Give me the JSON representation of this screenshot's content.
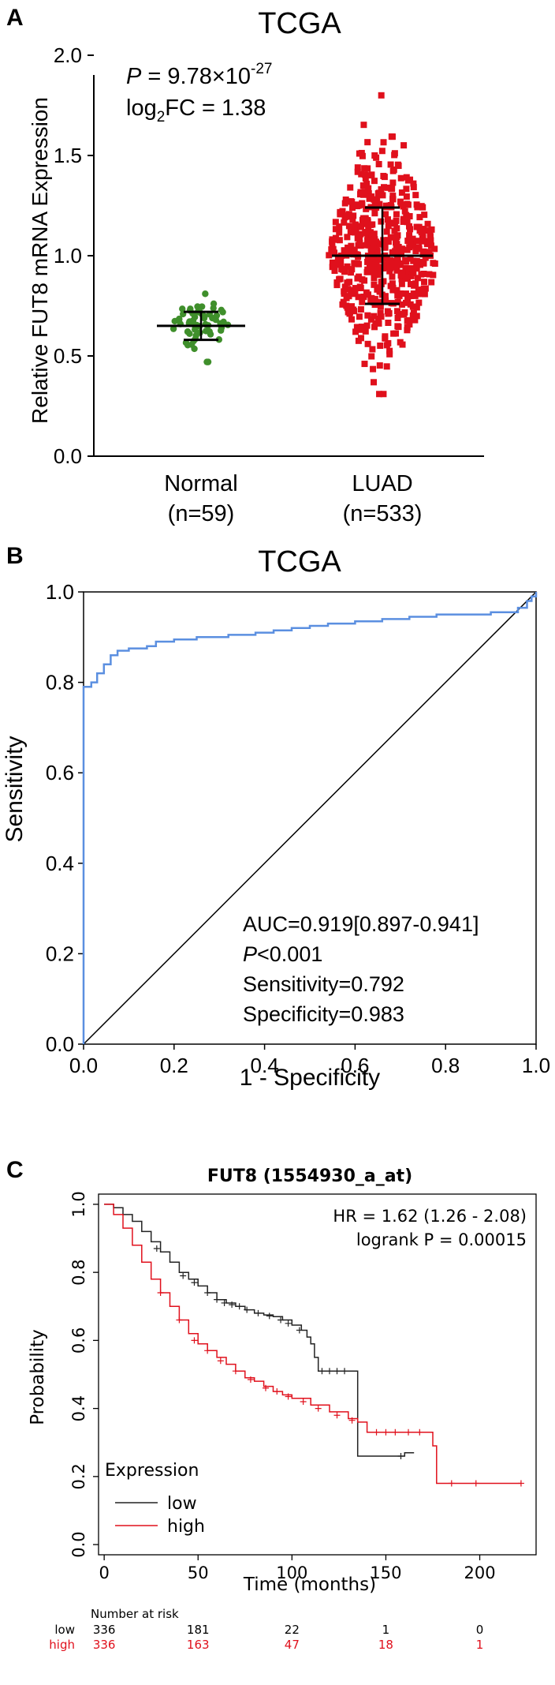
{
  "chart_data": [
    {
      "type": "scatter",
      "panel_label": "A",
      "title": "TCGA",
      "ylabel": "Relative FUT8 mRNA Expression",
      "ylim": [
        0,
        2.0
      ],
      "y_ticks": [
        "0.0",
        "0.5",
        "1.0",
        "1.5",
        "2.0"
      ],
      "categories": [
        "Normal",
        "LUAD"
      ],
      "category_n": [
        "(n=59)",
        "(n=533)"
      ],
      "annotation": {
        "p_label": "P",
        "p_value": " = 9.78×10",
        "p_exp": "-27",
        "fc_label": "log",
        "fc_sub": "2",
        "fc_value": "FC = 1.38"
      },
      "series": [
        {
          "category": "Normal",
          "color": "#3f8f2b",
          "n": 59,
          "mean": 0.65,
          "sd_low": 0.58,
          "sd_high": 0.72,
          "min": 0.47,
          "max": 0.81
        },
        {
          "category": "LUAD",
          "color": "#e0101c",
          "n": 533,
          "mean": 1.0,
          "sd_low": 0.76,
          "sd_high": 1.24,
          "min": 0.31,
          "max": 1.8
        }
      ]
    },
    {
      "type": "line",
      "panel_label": "B",
      "title": "TCGA",
      "xlabel": "1 - Specificity",
      "ylabel": "Sensitivity",
      "xlim": [
        0,
        1
      ],
      "ylim": [
        0,
        1
      ],
      "x_ticks": [
        "0.0",
        "0.2",
        "0.4",
        "0.6",
        "0.8",
        "1.0"
      ],
      "y_ticks": [
        "0.0",
        "0.2",
        "0.4",
        "0.6",
        "0.8",
        "1.0"
      ],
      "roc_color": "#5b8fe0",
      "roc_points": [
        [
          0,
          0
        ],
        [
          0,
          0.79
        ],
        [
          0.017,
          0.79
        ],
        [
          0.017,
          0.8
        ],
        [
          0.03,
          0.8
        ],
        [
          0.03,
          0.82
        ],
        [
          0.045,
          0.82
        ],
        [
          0.045,
          0.84
        ],
        [
          0.06,
          0.84
        ],
        [
          0.06,
          0.86
        ],
        [
          0.075,
          0.86
        ],
        [
          0.075,
          0.87
        ],
        [
          0.1,
          0.87
        ],
        [
          0.1,
          0.875
        ],
        [
          0.14,
          0.875
        ],
        [
          0.14,
          0.88
        ],
        [
          0.16,
          0.88
        ],
        [
          0.16,
          0.89
        ],
        [
          0.2,
          0.89
        ],
        [
          0.2,
          0.895
        ],
        [
          0.25,
          0.895
        ],
        [
          0.25,
          0.9
        ],
        [
          0.32,
          0.9
        ],
        [
          0.32,
          0.905
        ],
        [
          0.38,
          0.905
        ],
        [
          0.38,
          0.91
        ],
        [
          0.42,
          0.91
        ],
        [
          0.42,
          0.915
        ],
        [
          0.46,
          0.915
        ],
        [
          0.46,
          0.92
        ],
        [
          0.5,
          0.92
        ],
        [
          0.5,
          0.925
        ],
        [
          0.54,
          0.925
        ],
        [
          0.54,
          0.93
        ],
        [
          0.6,
          0.93
        ],
        [
          0.6,
          0.935
        ],
        [
          0.66,
          0.935
        ],
        [
          0.66,
          0.94
        ],
        [
          0.72,
          0.94
        ],
        [
          0.72,
          0.945
        ],
        [
          0.78,
          0.945
        ],
        [
          0.78,
          0.95
        ],
        [
          0.9,
          0.95
        ],
        [
          0.9,
          0.955
        ],
        [
          0.96,
          0.955
        ],
        [
          0.96,
          0.965
        ],
        [
          0.98,
          0.965
        ],
        [
          0.98,
          0.98
        ],
        [
          0.99,
          0.98
        ],
        [
          0.99,
          0.99
        ],
        [
          1,
          0.99
        ],
        [
          1,
          1
        ]
      ],
      "stats": [
        "AUC=0.919[0.897-0.941]",
        "<0.001",
        "Sensitivity=0.792",
        "Specificity=0.983"
      ],
      "stats_p_label": "P"
    },
    {
      "type": "line",
      "panel_label": "C",
      "title": "FUT8 (1554930_a_at)",
      "xlabel": "Time (months)",
      "ylabel": "Probability",
      "xlim": [
        0,
        230
      ],
      "ylim": [
        0,
        1.02
      ],
      "x_ticks": [
        0,
        50,
        100,
        150,
        200
      ],
      "y_ticks": [
        "0.0",
        "0.2",
        "0.4",
        "0.6",
        "0.8",
        "1.0"
      ],
      "stats": [
        "HR = 1.62 (1.26 - 2.08)",
        "logrank P = 0.00015"
      ],
      "legend_title": "Expression",
      "series": [
        {
          "name": "low",
          "color": "#222222",
          "points": [
            [
              0,
              1
            ],
            [
              5,
              0.99
            ],
            [
              10,
              0.97
            ],
            [
              15,
              0.95
            ],
            [
              20,
              0.92
            ],
            [
              25,
              0.89
            ],
            [
              30,
              0.86
            ],
            [
              35,
              0.83
            ],
            [
              40,
              0.8
            ],
            [
              45,
              0.78
            ],
            [
              50,
              0.76
            ],
            [
              55,
              0.74
            ],
            [
              60,
              0.72
            ],
            [
              65,
              0.71
            ],
            [
              70,
              0.7
            ],
            [
              75,
              0.69
            ],
            [
              80,
              0.68
            ],
            [
              85,
              0.675
            ],
            [
              90,
              0.67
            ],
            [
              95,
              0.66
            ],
            [
              100,
              0.645
            ],
            [
              105,
              0.63
            ],
            [
              108,
              0.61
            ],
            [
              110,
              0.59
            ],
            [
              112,
              0.55
            ],
            [
              114,
              0.51
            ],
            [
              135,
              0.51
            ],
            [
              135,
              0.26
            ],
            [
              160,
              0.26
            ],
            [
              160,
              0.27
            ],
            [
              165,
              0.27
            ]
          ],
          "censor": [
            [
              28,
              0.87
            ],
            [
              42,
              0.79
            ],
            [
              48,
              0.77
            ],
            [
              55,
              0.74
            ],
            [
              60,
              0.72
            ],
            [
              64,
              0.71
            ],
            [
              68,
              0.705
            ],
            [
              72,
              0.7
            ],
            [
              76,
              0.69
            ],
            [
              82,
              0.68
            ],
            [
              88,
              0.672
            ],
            [
              94,
              0.66
            ],
            [
              98,
              0.65
            ],
            [
              104,
              0.63
            ],
            [
              116,
              0.51
            ],
            [
              120,
              0.51
            ],
            [
              124,
              0.51
            ],
            [
              128,
              0.51
            ],
            [
              158,
              0.26
            ]
          ]
        },
        {
          "name": "high",
          "color": "#e0101c",
          "points": [
            [
              0,
              1
            ],
            [
              5,
              0.97
            ],
            [
              10,
              0.93
            ],
            [
              15,
              0.88
            ],
            [
              20,
              0.83
            ],
            [
              25,
              0.78
            ],
            [
              30,
              0.74
            ],
            [
              35,
              0.7
            ],
            [
              40,
              0.66
            ],
            [
              45,
              0.62
            ],
            [
              50,
              0.59
            ],
            [
              55,
              0.57
            ],
            [
              60,
              0.55
            ],
            [
              65,
              0.53
            ],
            [
              70,
              0.51
            ],
            [
              75,
              0.49
            ],
            [
              80,
              0.48
            ],
            [
              85,
              0.465
            ],
            [
              90,
              0.45
            ],
            [
              95,
              0.44
            ],
            [
              100,
              0.43
            ],
            [
              110,
              0.41
            ],
            [
              120,
              0.39
            ],
            [
              130,
              0.37
            ],
            [
              135,
              0.36
            ],
            [
              140,
              0.33
            ],
            [
              170,
              0.33
            ],
            [
              175,
              0.29
            ],
            [
              177,
              0.18
            ],
            [
              222,
              0.18
            ]
          ],
          "censor": [
            [
              30,
              0.74
            ],
            [
              40,
              0.66
            ],
            [
              48,
              0.6
            ],
            [
              55,
              0.57
            ],
            [
              62,
              0.54
            ],
            [
              70,
              0.51
            ],
            [
              78,
              0.485
            ],
            [
              86,
              0.46
            ],
            [
              92,
              0.45
            ],
            [
              98,
              0.435
            ],
            [
              106,
              0.42
            ],
            [
              114,
              0.4
            ],
            [
              124,
              0.38
            ],
            [
              132,
              0.365
            ],
            [
              145,
              0.33
            ],
            [
              150,
              0.33
            ],
            [
              155,
              0.33
            ],
            [
              162,
              0.33
            ],
            [
              168,
              0.33
            ],
            [
              185,
              0.18
            ],
            [
              198,
              0.18
            ],
            [
              222,
              0.18
            ]
          ]
        }
      ],
      "risk_table": {
        "header": "Number at risk",
        "rows": [
          {
            "label": "low",
            "color": "#000000",
            "values": [
              "336",
              "181",
              "22",
              "1",
              "0"
            ]
          },
          {
            "label": "high",
            "color": "#e0101c",
            "values": [
              "336",
              "163",
              "47",
              "18",
              "1"
            ]
          }
        ]
      }
    }
  ]
}
